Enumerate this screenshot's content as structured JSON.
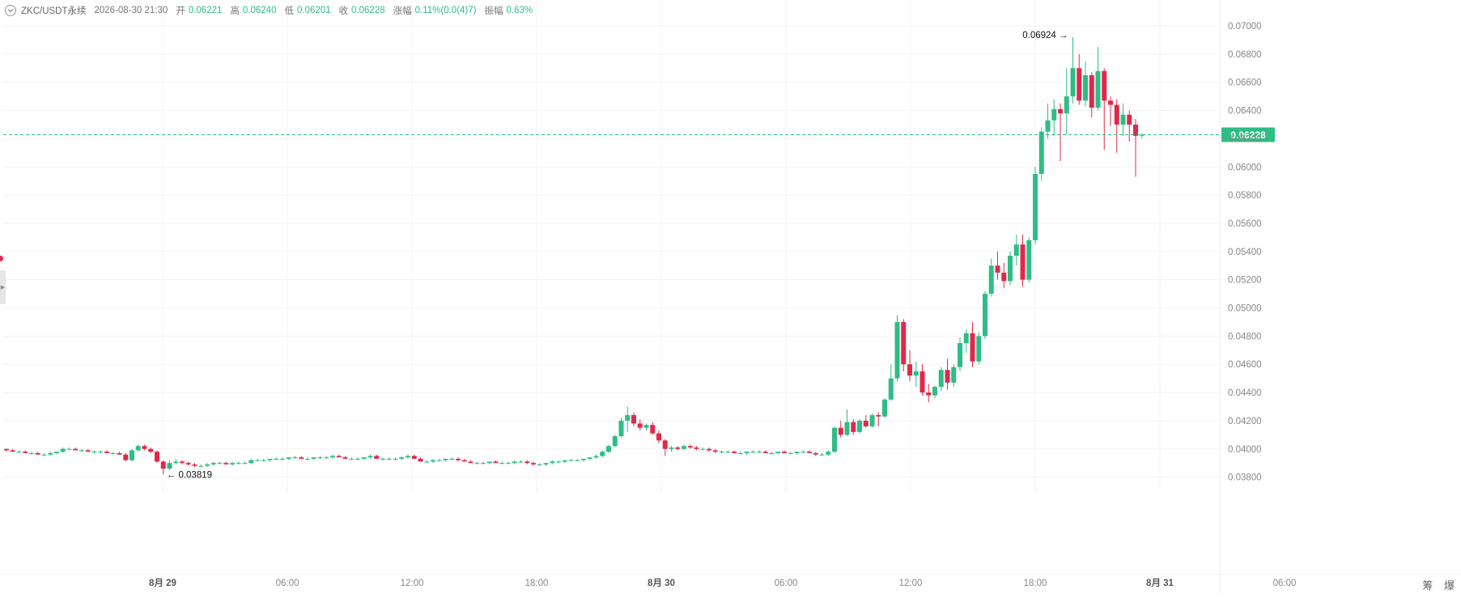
{
  "header": {
    "symbol": "ZKC/USDT永续",
    "time": "2026-08-30 21:30",
    "open_label": "开",
    "open_value": "0.06221",
    "high_label": "高",
    "high_value": "0.06240",
    "low_label": "低",
    "low_value": "0.06201",
    "close_label": "收",
    "close_value": "0.06228",
    "change_label": "涨幅",
    "change_value": "0.11%(0.0(4)7)",
    "amplitude_label": "振幅",
    "amplitude_value": "0.63%"
  },
  "right_tools": {
    "tool1": "筹",
    "tool2": "爆"
  },
  "colors": {
    "up": "#2ebd85",
    "down": "#e0294a",
    "grid": "#f3f3f3",
    "axis_text": "#888888",
    "price_line": "#2ebd85"
  },
  "icons": {
    "collapse": "chevron-down-icon",
    "side_toggle": "chevron-right-icon"
  },
  "chart_data": {
    "type": "candlestick",
    "interval_minutes": 30,
    "y_ticks": [
      "0.07000",
      "0.06800",
      "0.06600",
      "0.06400",
      "0.06200",
      "0.06000",
      "0.05800",
      "0.05600",
      "0.05400",
      "0.05200",
      "0.05000",
      "0.04800",
      "0.04600",
      "0.04400",
      "0.04200",
      "0.04000",
      "0.03800"
    ],
    "ylim": [
      0.0365,
      0.0713
    ],
    "x_ticks": [
      "8月 29",
      "06:00",
      "12:00",
      "18:00",
      "8月 30",
      "06:00",
      "12:00",
      "18:00",
      "8月 31",
      "06:00"
    ],
    "x_tick_bold": [
      true,
      false,
      false,
      false,
      true,
      false,
      false,
      false,
      true,
      false
    ],
    "last_price_label": "0.06228",
    "last_price": 0.06228,
    "high_annotation": {
      "label": "0.06924",
      "value": 0.06924
    },
    "low_annotation": {
      "label": "0.03819",
      "value": 0.03819
    },
    "candles": [
      [
        0.04,
        0.04,
        0.0398,
        0.0399
      ],
      [
        0.0399,
        0.04,
        0.0398,
        0.0398
      ],
      [
        0.0398,
        0.0399,
        0.0397,
        0.0398
      ],
      [
        0.0398,
        0.0399,
        0.0397,
        0.0397
      ],
      [
        0.0397,
        0.0398,
        0.0396,
        0.0397
      ],
      [
        0.0397,
        0.0398,
        0.0396,
        0.0396
      ],
      [
        0.0396,
        0.0397,
        0.0395,
        0.0396
      ],
      [
        0.0396,
        0.0398,
        0.0395,
        0.0397
      ],
      [
        0.0397,
        0.0398,
        0.0396,
        0.0398
      ],
      [
        0.0398,
        0.0401,
        0.0397,
        0.04
      ],
      [
        0.04,
        0.0401,
        0.0399,
        0.04
      ],
      [
        0.04,
        0.0401,
        0.0399,
        0.0399
      ],
      [
        0.0399,
        0.04,
        0.0398,
        0.0399
      ],
      [
        0.0399,
        0.04,
        0.0398,
        0.0398
      ],
      [
        0.0398,
        0.0399,
        0.0397,
        0.0398
      ],
      [
        0.0398,
        0.0399,
        0.0397,
        0.0398
      ],
      [
        0.0398,
        0.0399,
        0.0397,
        0.0397
      ],
      [
        0.0397,
        0.0398,
        0.0396,
        0.0397
      ],
      [
        0.0397,
        0.0398,
        0.0396,
        0.0396
      ],
      [
        0.0396,
        0.0397,
        0.0391,
        0.0392
      ],
      [
        0.0392,
        0.04,
        0.0391,
        0.0399
      ],
      [
        0.0399,
        0.0403,
        0.0398,
        0.0402
      ],
      [
        0.0402,
        0.0403,
        0.0399,
        0.04
      ],
      [
        0.04,
        0.0401,
        0.0397,
        0.0398
      ],
      [
        0.0398,
        0.0399,
        0.039,
        0.0391
      ],
      [
        0.0391,
        0.0392,
        0.0382,
        0.0386
      ],
      [
        0.0386,
        0.0392,
        0.0385,
        0.039
      ],
      [
        0.039,
        0.0393,
        0.0389,
        0.0391
      ],
      [
        0.0391,
        0.0392,
        0.0389,
        0.039
      ],
      [
        0.039,
        0.0391,
        0.0388,
        0.0389
      ],
      [
        0.0389,
        0.039,
        0.0387,
        0.0388
      ],
      [
        0.0388,
        0.0389,
        0.0387,
        0.0388
      ],
      [
        0.0388,
        0.039,
        0.0387,
        0.0389
      ],
      [
        0.0389,
        0.0391,
        0.0388,
        0.039
      ],
      [
        0.039,
        0.0391,
        0.0389,
        0.039
      ],
      [
        0.039,
        0.0391,
        0.0389,
        0.0389
      ],
      [
        0.0389,
        0.0391,
        0.0388,
        0.039
      ],
      [
        0.039,
        0.0391,
        0.0389,
        0.039
      ],
      [
        0.039,
        0.0391,
        0.0389,
        0.039
      ],
      [
        0.039,
        0.0393,
        0.0389,
        0.0392
      ],
      [
        0.0392,
        0.0393,
        0.0391,
        0.0392
      ],
      [
        0.0392,
        0.0393,
        0.0391,
        0.0392
      ],
      [
        0.0392,
        0.0393,
        0.0391,
        0.0393
      ],
      [
        0.0393,
        0.0394,
        0.0392,
        0.0393
      ],
      [
        0.0393,
        0.0394,
        0.0392,
        0.0393
      ],
      [
        0.0393,
        0.0394,
        0.0392,
        0.0394
      ],
      [
        0.0394,
        0.0395,
        0.0393,
        0.0394
      ],
      [
        0.0394,
        0.0395,
        0.0393,
        0.0393
      ],
      [
        0.0393,
        0.0394,
        0.0392,
        0.0393
      ],
      [
        0.0393,
        0.0394,
        0.0392,
        0.0394
      ],
      [
        0.0394,
        0.0395,
        0.0393,
        0.0394
      ],
      [
        0.0394,
        0.0395,
        0.0393,
        0.0394
      ],
      [
        0.0394,
        0.0396,
        0.0393,
        0.0395
      ],
      [
        0.0395,
        0.0396,
        0.0394,
        0.0394
      ],
      [
        0.0394,
        0.0395,
        0.0393,
        0.0393
      ],
      [
        0.0393,
        0.0394,
        0.0392,
        0.0393
      ],
      [
        0.0393,
        0.0394,
        0.0392,
        0.0393
      ],
      [
        0.0393,
        0.0394,
        0.0392,
        0.0394
      ],
      [
        0.0394,
        0.0396,
        0.0393,
        0.0395
      ],
      [
        0.0395,
        0.0396,
        0.0393,
        0.0393
      ],
      [
        0.0393,
        0.0394,
        0.0392,
        0.0393
      ],
      [
        0.0393,
        0.0394,
        0.0392,
        0.0393
      ],
      [
        0.0393,
        0.0394,
        0.0392,
        0.0393
      ],
      [
        0.0393,
        0.0395,
        0.0392,
        0.0394
      ],
      [
        0.0394,
        0.0396,
        0.0393,
        0.0395
      ],
      [
        0.0395,
        0.0396,
        0.0393,
        0.0393
      ],
      [
        0.0393,
        0.0394,
        0.0391,
        0.0391
      ],
      [
        0.0391,
        0.0392,
        0.039,
        0.0391
      ],
      [
        0.0391,
        0.0393,
        0.039,
        0.0392
      ],
      [
        0.0392,
        0.0393,
        0.0391,
        0.0392
      ],
      [
        0.0392,
        0.0393,
        0.0391,
        0.0393
      ],
      [
        0.0393,
        0.0394,
        0.0392,
        0.0393
      ],
      [
        0.0393,
        0.0394,
        0.0391,
        0.0392
      ],
      [
        0.0392,
        0.0393,
        0.0391,
        0.0391
      ],
      [
        0.0391,
        0.0392,
        0.039,
        0.039
      ],
      [
        0.039,
        0.0391,
        0.0389,
        0.039
      ],
      [
        0.039,
        0.0391,
        0.0389,
        0.039
      ],
      [
        0.039,
        0.0391,
        0.0389,
        0.0391
      ],
      [
        0.0391,
        0.0392,
        0.039,
        0.039
      ],
      [
        0.039,
        0.0391,
        0.0389,
        0.039
      ],
      [
        0.039,
        0.0391,
        0.0389,
        0.039
      ],
      [
        0.039,
        0.0392,
        0.0389,
        0.0391
      ],
      [
        0.0391,
        0.0392,
        0.039,
        0.0391
      ],
      [
        0.0391,
        0.0392,
        0.0389,
        0.039
      ],
      [
        0.039,
        0.0391,
        0.0388,
        0.0389
      ],
      [
        0.0389,
        0.039,
        0.0388,
        0.0389
      ],
      [
        0.0389,
        0.039,
        0.0388,
        0.039
      ],
      [
        0.039,
        0.0392,
        0.0389,
        0.0391
      ],
      [
        0.0391,
        0.0392,
        0.039,
        0.0391
      ],
      [
        0.0391,
        0.0392,
        0.039,
        0.0392
      ],
      [
        0.0392,
        0.0393,
        0.0391,
        0.0392
      ],
      [
        0.0392,
        0.0393,
        0.0391,
        0.0392
      ],
      [
        0.0392,
        0.0393,
        0.0391,
        0.0393
      ],
      [
        0.0393,
        0.0394,
        0.0392,
        0.0394
      ],
      [
        0.0394,
        0.0396,
        0.0393,
        0.0395
      ],
      [
        0.0395,
        0.0399,
        0.0394,
        0.0398
      ],
      [
        0.0398,
        0.0403,
        0.0397,
        0.0402
      ],
      [
        0.0402,
        0.041,
        0.0401,
        0.0409
      ],
      [
        0.0409,
        0.0422,
        0.0408,
        0.042
      ],
      [
        0.042,
        0.043,
        0.0412,
        0.0424
      ],
      [
        0.0424,
        0.0426,
        0.0416,
        0.0418
      ],
      [
        0.0418,
        0.0421,
        0.0413,
        0.0415
      ],
      [
        0.0415,
        0.0418,
        0.0413,
        0.0417
      ],
      [
        0.0417,
        0.0419,
        0.041,
        0.0411
      ],
      [
        0.0411,
        0.0413,
        0.0404,
        0.0406
      ],
      [
        0.0406,
        0.0407,
        0.0395,
        0.04
      ],
      [
        0.04,
        0.0402,
        0.0398,
        0.0401
      ],
      [
        0.0401,
        0.0402,
        0.0399,
        0.04
      ],
      [
        0.04,
        0.0403,
        0.0399,
        0.0402
      ],
      [
        0.0402,
        0.0403,
        0.04,
        0.0401
      ],
      [
        0.0401,
        0.0402,
        0.0399,
        0.04
      ],
      [
        0.04,
        0.0401,
        0.0399,
        0.04
      ],
      [
        0.04,
        0.0401,
        0.0398,
        0.0399
      ],
      [
        0.0399,
        0.04,
        0.0397,
        0.0398
      ],
      [
        0.0398,
        0.0399,
        0.0397,
        0.0398
      ],
      [
        0.0398,
        0.0399,
        0.0397,
        0.0398
      ],
      [
        0.0398,
        0.0399,
        0.0397,
        0.0397
      ],
      [
        0.0397,
        0.0398,
        0.0396,
        0.0397
      ],
      [
        0.0397,
        0.0398,
        0.0396,
        0.0398
      ],
      [
        0.0398,
        0.0399,
        0.0397,
        0.0398
      ],
      [
        0.0398,
        0.0399,
        0.0397,
        0.0398
      ],
      [
        0.0398,
        0.0399,
        0.0397,
        0.0397
      ],
      [
        0.0397,
        0.0398,
        0.0396,
        0.0397
      ],
      [
        0.0397,
        0.0398,
        0.0396,
        0.0398
      ],
      [
        0.0398,
        0.0399,
        0.0397,
        0.0397
      ],
      [
        0.0397,
        0.0398,
        0.0396,
        0.0397
      ],
      [
        0.0397,
        0.0398,
        0.0396,
        0.0398
      ],
      [
        0.0398,
        0.0399,
        0.0397,
        0.0398
      ],
      [
        0.0398,
        0.0399,
        0.0397,
        0.0397
      ],
      [
        0.0397,
        0.0398,
        0.0395,
        0.0396
      ],
      [
        0.0396,
        0.0397,
        0.0395,
        0.0396
      ],
      [
        0.0396,
        0.0399,
        0.0395,
        0.0398
      ],
      [
        0.0398,
        0.0416,
        0.0397,
        0.0415
      ],
      [
        0.0415,
        0.042,
        0.0408,
        0.041
      ],
      [
        0.041,
        0.0428,
        0.0409,
        0.0419
      ],
      [
        0.0419,
        0.0421,
        0.041,
        0.0412
      ],
      [
        0.0412,
        0.0421,
        0.0411,
        0.042
      ],
      [
        0.042,
        0.0424,
        0.0415,
        0.0416
      ],
      [
        0.0416,
        0.0425,
        0.0415,
        0.0424
      ],
      [
        0.0424,
        0.0426,
        0.0416,
        0.0423
      ],
      [
        0.0423,
        0.0436,
        0.0422,
        0.0435
      ],
      [
        0.0435,
        0.046,
        0.0434,
        0.045
      ],
      [
        0.045,
        0.0495,
        0.0448,
        0.049
      ],
      [
        0.049,
        0.0492,
        0.0455,
        0.046
      ],
      [
        0.046,
        0.047,
        0.0448,
        0.0452
      ],
      [
        0.0452,
        0.0462,
        0.0444,
        0.0455
      ],
      [
        0.0455,
        0.046,
        0.0438,
        0.044
      ],
      [
        0.044,
        0.0446,
        0.0433,
        0.0438
      ],
      [
        0.0438,
        0.0445,
        0.0436,
        0.0444
      ],
      [
        0.0444,
        0.0458,
        0.0441,
        0.0456
      ],
      [
        0.0456,
        0.0464,
        0.0442,
        0.0447
      ],
      [
        0.0447,
        0.046,
        0.0444,
        0.0458
      ],
      [
        0.0458,
        0.0479,
        0.0455,
        0.0475
      ],
      [
        0.0475,
        0.0485,
        0.0468,
        0.0482
      ],
      [
        0.0482,
        0.049,
        0.0458,
        0.0462
      ],
      [
        0.0462,
        0.0483,
        0.046,
        0.048
      ],
      [
        0.048,
        0.0512,
        0.0478,
        0.051
      ],
      [
        0.051,
        0.0535,
        0.0508,
        0.053
      ],
      [
        0.053,
        0.054,
        0.052,
        0.0525
      ],
      [
        0.0525,
        0.0532,
        0.0514,
        0.0519
      ],
      [
        0.0519,
        0.054,
        0.0516,
        0.0537
      ],
      [
        0.0537,
        0.0552,
        0.053,
        0.0545
      ],
      [
        0.0545,
        0.0552,
        0.0515,
        0.052
      ],
      [
        0.052,
        0.055,
        0.0518,
        0.0548
      ],
      [
        0.0548,
        0.06,
        0.0545,
        0.0595
      ],
      [
        0.0595,
        0.0628,
        0.059,
        0.0625
      ],
      [
        0.0625,
        0.0645,
        0.062,
        0.0633
      ],
      [
        0.0633,
        0.0648,
        0.0622,
        0.0641
      ],
      [
        0.0641,
        0.0645,
        0.0604,
        0.0638
      ],
      [
        0.0638,
        0.067,
        0.0623,
        0.065
      ],
      [
        0.065,
        0.0692,
        0.0645,
        0.067
      ],
      [
        0.067,
        0.068,
        0.0644,
        0.0647
      ],
      [
        0.0647,
        0.0675,
        0.0643,
        0.0665
      ],
      [
        0.0665,
        0.0667,
        0.0635,
        0.0642
      ],
      [
        0.0642,
        0.0685,
        0.064,
        0.0668
      ],
      [
        0.0668,
        0.067,
        0.0612,
        0.0647
      ],
      [
        0.0647,
        0.065,
        0.0629,
        0.0644
      ],
      [
        0.0644,
        0.0648,
        0.061,
        0.063
      ],
      [
        0.063,
        0.0645,
        0.0622,
        0.0637
      ],
      [
        0.0637,
        0.064,
        0.0618,
        0.063
      ],
      [
        0.063,
        0.0634,
        0.0593,
        0.0622
      ],
      [
        0.06221,
        0.0624,
        0.06201,
        0.06228
      ]
    ]
  }
}
